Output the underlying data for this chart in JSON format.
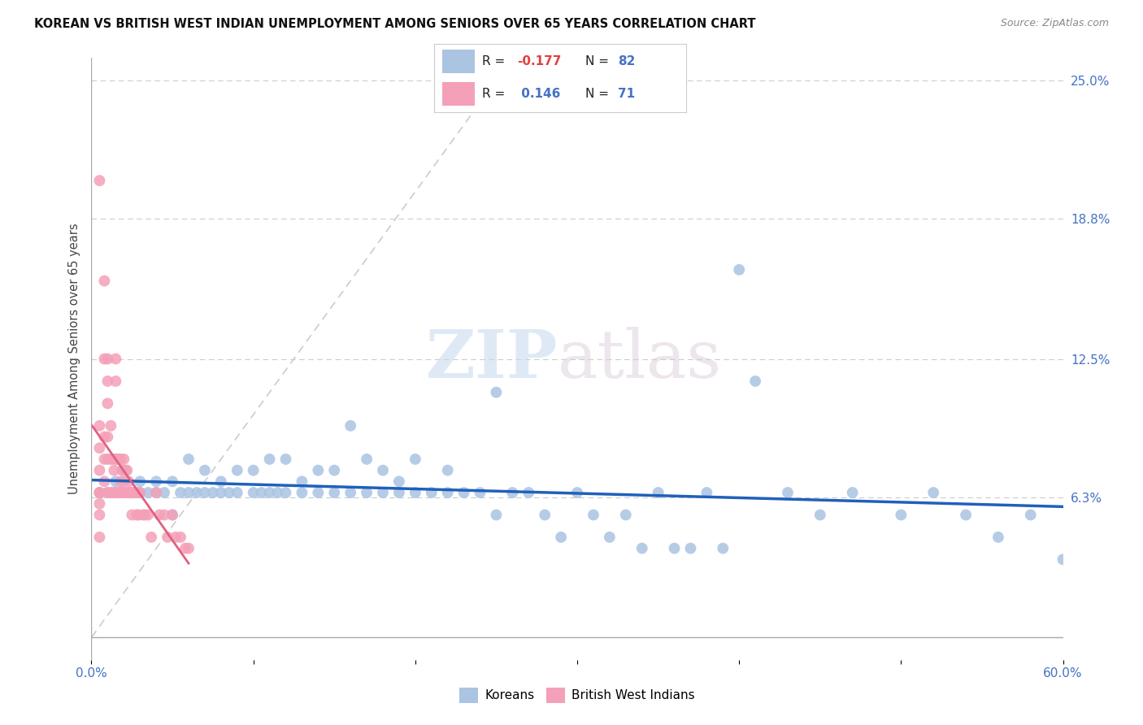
{
  "title": "KOREAN VS BRITISH WEST INDIAN UNEMPLOYMENT AMONG SENIORS OVER 65 YEARS CORRELATION CHART",
  "source": "Source: ZipAtlas.com",
  "ylabel": "Unemployment Among Seniors over 65 years",
  "xlim": [
    0.0,
    0.6
  ],
  "ylim": [
    -0.01,
    0.26
  ],
  "ylim_plot": [
    0.0,
    0.25
  ],
  "korean_color": "#aac4e2",
  "bwi_color": "#f4a0b8",
  "trendline_korean_color": "#2060bb",
  "trendline_bwi_color": "#e06080",
  "diagonal_color": "#cccccc",
  "watermark_zip": "ZIP",
  "watermark_atlas": "atlas",
  "legend_R_korean": "-0.177",
  "legend_N_korean": "82",
  "legend_R_bwi": "0.146",
  "legend_N_bwi": "71",
  "korean_x": [
    0.005,
    0.01,
    0.015,
    0.02,
    0.02,
    0.025,
    0.03,
    0.03,
    0.035,
    0.04,
    0.04,
    0.045,
    0.05,
    0.05,
    0.055,
    0.06,
    0.06,
    0.065,
    0.07,
    0.07,
    0.075,
    0.08,
    0.08,
    0.085,
    0.09,
    0.09,
    0.1,
    0.1,
    0.105,
    0.11,
    0.11,
    0.115,
    0.12,
    0.12,
    0.13,
    0.13,
    0.14,
    0.14,
    0.15,
    0.15,
    0.16,
    0.16,
    0.17,
    0.17,
    0.18,
    0.18,
    0.19,
    0.19,
    0.2,
    0.2,
    0.21,
    0.22,
    0.22,
    0.23,
    0.24,
    0.25,
    0.25,
    0.26,
    0.27,
    0.28,
    0.29,
    0.3,
    0.31,
    0.32,
    0.33,
    0.34,
    0.35,
    0.36,
    0.37,
    0.38,
    0.39,
    0.4,
    0.41,
    0.43,
    0.45,
    0.47,
    0.5,
    0.52,
    0.54,
    0.56,
    0.58,
    0.6
  ],
  "korean_y": [
    0.065,
    0.065,
    0.07,
    0.065,
    0.075,
    0.065,
    0.065,
    0.07,
    0.065,
    0.065,
    0.07,
    0.065,
    0.055,
    0.07,
    0.065,
    0.065,
    0.08,
    0.065,
    0.075,
    0.065,
    0.065,
    0.07,
    0.065,
    0.065,
    0.075,
    0.065,
    0.065,
    0.075,
    0.065,
    0.065,
    0.08,
    0.065,
    0.065,
    0.08,
    0.065,
    0.07,
    0.065,
    0.075,
    0.065,
    0.075,
    0.065,
    0.095,
    0.065,
    0.08,
    0.065,
    0.075,
    0.065,
    0.07,
    0.065,
    0.08,
    0.065,
    0.065,
    0.075,
    0.065,
    0.065,
    0.055,
    0.11,
    0.065,
    0.065,
    0.055,
    0.045,
    0.065,
    0.055,
    0.045,
    0.055,
    0.04,
    0.065,
    0.04,
    0.04,
    0.065,
    0.04,
    0.165,
    0.115,
    0.065,
    0.055,
    0.065,
    0.055,
    0.065,
    0.055,
    0.045,
    0.055,
    0.035
  ],
  "bwi_x": [
    0.005,
    0.005,
    0.005,
    0.005,
    0.005,
    0.005,
    0.005,
    0.005,
    0.005,
    0.008,
    0.008,
    0.008,
    0.008,
    0.008,
    0.01,
    0.01,
    0.01,
    0.01,
    0.01,
    0.01,
    0.012,
    0.012,
    0.012,
    0.013,
    0.013,
    0.014,
    0.014,
    0.015,
    0.015,
    0.015,
    0.015,
    0.016,
    0.016,
    0.017,
    0.017,
    0.018,
    0.018,
    0.018,
    0.019,
    0.019,
    0.02,
    0.02,
    0.02,
    0.021,
    0.021,
    0.022,
    0.022,
    0.023,
    0.023,
    0.024,
    0.025,
    0.025,
    0.026,
    0.027,
    0.028,
    0.028,
    0.029,
    0.03,
    0.032,
    0.033,
    0.035,
    0.037,
    0.04,
    0.042,
    0.045,
    0.047,
    0.05,
    0.052,
    0.055,
    0.058,
    0.06
  ],
  "bwi_y": [
    0.205,
    0.095,
    0.085,
    0.075,
    0.065,
    0.065,
    0.06,
    0.055,
    0.045,
    0.16,
    0.125,
    0.09,
    0.08,
    0.07,
    0.125,
    0.115,
    0.105,
    0.09,
    0.08,
    0.065,
    0.095,
    0.08,
    0.065,
    0.08,
    0.065,
    0.075,
    0.065,
    0.125,
    0.115,
    0.08,
    0.065,
    0.08,
    0.065,
    0.08,
    0.065,
    0.08,
    0.07,
    0.065,
    0.075,
    0.065,
    0.08,
    0.07,
    0.065,
    0.075,
    0.065,
    0.075,
    0.065,
    0.07,
    0.065,
    0.065,
    0.065,
    0.055,
    0.065,
    0.065,
    0.065,
    0.055,
    0.055,
    0.065,
    0.055,
    0.055,
    0.055,
    0.045,
    0.065,
    0.055,
    0.055,
    0.045,
    0.055,
    0.045,
    0.045,
    0.04,
    0.04
  ]
}
